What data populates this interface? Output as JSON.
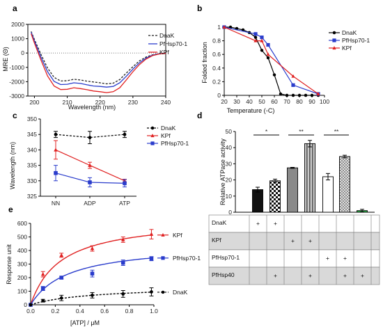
{
  "chart_data": [
    {
      "panel": "a",
      "type": "line",
      "xlabel": "Wavelength (nm)",
      "ylabel": "MRE (Θ)",
      "xlim": [
        198,
        240
      ],
      "ylim": [
        -3000,
        2000
      ],
      "xticks": [
        200,
        210,
        220,
        230,
        240
      ],
      "yticks": [
        2000,
        1000,
        0,
        -1000,
        -2000,
        -3000
      ],
      "zero_line": "dotted",
      "legend_position": "right",
      "series": [
        {
          "name": "DnaK",
          "color": "#222222",
          "style": "dashed",
          "x": [
            199,
            200,
            202,
            204,
            206,
            208,
            210,
            212,
            214,
            216,
            218,
            220,
            222,
            224,
            226,
            228,
            230,
            232,
            234,
            236,
            238,
            240
          ],
          "y": [
            1500,
            950,
            -100,
            -1050,
            -1700,
            -1950,
            -1930,
            -1830,
            -1880,
            -1960,
            -2020,
            -2080,
            -2150,
            -2100,
            -1850,
            -1400,
            -950,
            -550,
            -280,
            -120,
            -50,
            -20
          ]
        },
        {
          "name": "PfHsp70-1",
          "color": "#2a3ccc",
          "style": "solid",
          "x": [
            199,
            200,
            202,
            204,
            206,
            208,
            210,
            212,
            214,
            216,
            218,
            220,
            222,
            224,
            226,
            228,
            230,
            232,
            234,
            236,
            238,
            240
          ],
          "y": [
            1450,
            850,
            -300,
            -1300,
            -1980,
            -2200,
            -2180,
            -2080,
            -2120,
            -2220,
            -2300,
            -2330,
            -2380,
            -2330,
            -2080,
            -1620,
            -1120,
            -680,
            -350,
            -150,
            -60,
            -20
          ]
        },
        {
          "name": "KPf",
          "color": "#e02020",
          "style": "solid",
          "x": [
            199,
            200,
            202,
            204,
            206,
            208,
            210,
            212,
            214,
            216,
            218,
            220,
            222,
            224,
            226,
            228,
            230,
            232,
            234,
            236,
            238,
            240
          ],
          "y": [
            1350,
            700,
            -500,
            -1600,
            -2300,
            -2550,
            -2530,
            -2420,
            -2480,
            -2560,
            -2650,
            -2700,
            -2760,
            -2700,
            -2420,
            -1880,
            -1300,
            -800,
            -420,
            -180,
            -70,
            -25
          ]
        }
      ]
    },
    {
      "panel": "b",
      "type": "line",
      "xlabel": "Temperature (◦C)",
      "ylabel": "Folded fraction",
      "xlim": [
        20,
        100
      ],
      "ylim": [
        0,
        1
      ],
      "xticks": [
        20,
        30,
        40,
        50,
        60,
        70,
        80,
        90,
        100
      ],
      "yticks": [
        0,
        0.2,
        0.4,
        0.6,
        0.8,
        1
      ],
      "legend_position": "right",
      "series": [
        {
          "name": "DnaK",
          "color": "#000000",
          "marker": "circle",
          "x": [
            20,
            25,
            30,
            35,
            40,
            45,
            50,
            55,
            60,
            65,
            70,
            75,
            80,
            85,
            90,
            95
          ],
          "y": [
            1.0,
            1.0,
            0.98,
            0.96,
            0.92,
            0.85,
            0.66,
            0.55,
            0.3,
            0.02,
            0.0,
            0.0,
            0.0,
            0.0,
            0.0,
            0.0
          ]
        },
        {
          "name": "PfHsp70-1",
          "color": "#2a3ccc",
          "marker": "square",
          "x": [
            20,
            45,
            50,
            55,
            75,
            95
          ],
          "y": [
            1.0,
            0.9,
            0.85,
            0.74,
            0.15,
            0.02
          ]
        },
        {
          "name": "KPf",
          "color": "#e02020",
          "marker": "triangle",
          "x": [
            20,
            45,
            50,
            55,
            75,
            95
          ],
          "y": [
            1.0,
            0.8,
            0.8,
            0.6,
            0.28,
            0.02
          ]
        }
      ]
    },
    {
      "panel": "c",
      "type": "line",
      "xlabel": "",
      "ylabel": "Wavelength (nm)",
      "categories": [
        "NN",
        "ADP",
        "ATP"
      ],
      "ylim": [
        325,
        350
      ],
      "yticks": [
        325,
        330,
        335,
        340,
        345,
        350
      ],
      "legend_position": "right",
      "series": [
        {
          "name": "DnaK",
          "color": "#000000",
          "style": "dashed",
          "marker": "circle",
          "values": [
            345,
            344,
            345
          ],
          "errors": [
            1.0,
            2.0,
            1.0
          ]
        },
        {
          "name": "KPf",
          "color": "#e02020",
          "style": "solid",
          "marker": "triangle",
          "values": [
            340,
            335,
            330
          ],
          "errors": [
            3.0,
            1.0,
            0.5
          ]
        },
        {
          "name": "PfHsp70-1",
          "color": "#2a3ccc",
          "style": "solid",
          "marker": "square",
          "values": [
            332.5,
            329.5,
            329.2
          ],
          "errors": [
            2.5,
            1.5,
            1.2
          ]
        }
      ]
    },
    {
      "panel": "d",
      "type": "bar",
      "xlabel": "",
      "ylabel": "Relative ATPase activity",
      "ylim": [
        0,
        50
      ],
      "yticks": [
        0,
        10,
        20,
        30,
        40,
        50
      ],
      "values": [
        14,
        19.5,
        27.5,
        42.5,
        22,
        34.5,
        1
      ],
      "errors": [
        1.5,
        1.0,
        0.3,
        2.0,
        2.0,
        0.8,
        0.8
      ],
      "fills": [
        "black",
        "checker",
        "gray",
        "stripes",
        "white",
        "dots",
        "green"
      ],
      "significance": [
        "*",
        "**",
        "**"
      ],
      "table": {
        "rows": [
          "DnaK",
          "KPf",
          "PfHsp70-1",
          "PfHsp40"
        ],
        "cells": [
          [
            "+",
            "+",
            "",
            "",
            "",
            "",
            ""
          ],
          [
            "",
            "",
            "+",
            "+",
            "",
            "",
            ""
          ],
          [
            "",
            "",
            "",
            "",
            "+",
            "+",
            ""
          ],
          [
            "",
            "+",
            "",
            "+",
            "",
            "+",
            "+"
          ]
        ]
      }
    },
    {
      "panel": "e",
      "type": "scatter",
      "xlabel": "[ATP] / μM",
      "ylabel": "Response unit",
      "xlim": [
        0,
        1.0
      ],
      "ylim": [
        0,
        600
      ],
      "xticks": [
        0.0,
        0.2,
        0.4,
        0.6,
        0.8,
        1.0
      ],
      "xtick_labels": [
        "0.0",
        "0.2",
        "0.4",
        "0.6",
        "0.8",
        "1.0"
      ],
      "yticks": [
        0,
        100,
        200,
        300,
        400,
        500,
        600
      ],
      "legend_position": "right",
      "series": [
        {
          "name": "KPf",
          "color": "#e02020",
          "marker": "triangle",
          "fit_bmax": 640,
          "fit_kd": 0.24,
          "x": [
            0.0,
            0.1,
            0.25,
            0.5,
            0.75,
            0.98
          ],
          "y": [
            0,
            225,
            365,
            415,
            480,
            520
          ],
          "errors": [
            0,
            20,
            15,
            20,
            20,
            35
          ]
        },
        {
          "name": "PfHsp70-1",
          "color": "#2a3ccc",
          "marker": "square",
          "fit_bmax": 450,
          "fit_kd": 0.3,
          "x": [
            0.0,
            0.1,
            0.25,
            0.5,
            0.75,
            0.98
          ],
          "y": [
            0,
            120,
            200,
            230,
            310,
            340
          ],
          "errors": [
            0,
            15,
            10,
            25,
            20,
            15
          ]
        },
        {
          "name": "DnaK",
          "color": "#000000",
          "marker": "circle",
          "style": "dashed",
          "fit_bmax": 140,
          "fit_kd": 0.5,
          "x": [
            0.0,
            0.1,
            0.25,
            0.5,
            0.75,
            0.98
          ],
          "y": [
            0,
            30,
            50,
            70,
            80,
            95
          ],
          "errors": [
            0,
            10,
            20,
            20,
            25,
            30
          ]
        }
      ]
    }
  ],
  "panel_labels": [
    "a",
    "b",
    "c",
    "d",
    "e"
  ]
}
